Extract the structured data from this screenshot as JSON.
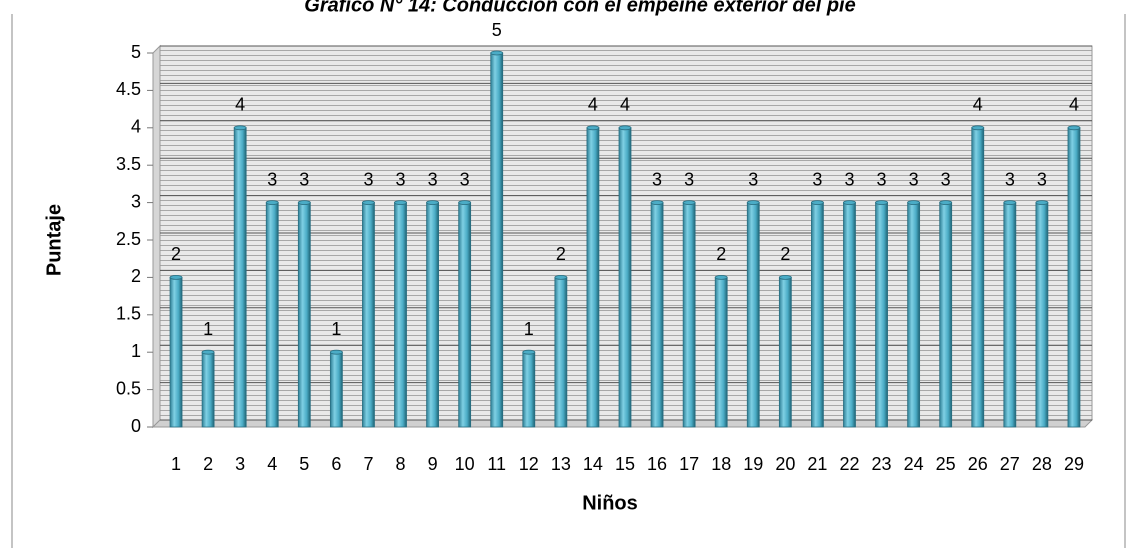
{
  "chart_data": {
    "type": "bar",
    "title": "Gráfico N° 14: Conducción con el empeine exterior del pie",
    "x_label": "Niños",
    "y_label": "Puntaje",
    "categories": [
      "1",
      "2",
      "3",
      "4",
      "5",
      "6",
      "7",
      "8",
      "9",
      "10",
      "11",
      "12",
      "13",
      "14",
      "15",
      "16",
      "17",
      "18",
      "19",
      "20",
      "21",
      "22",
      "23",
      "24",
      "25",
      "26",
      "27",
      "28",
      "29"
    ],
    "values": [
      2,
      1,
      4,
      3,
      3,
      1,
      3,
      3,
      3,
      3,
      5,
      1,
      2,
      4,
      4,
      3,
      3,
      2,
      3,
      2,
      3,
      3,
      3,
      3,
      3,
      4,
      3,
      3,
      4
    ],
    "color": "#4bacc6",
    "ylim": [
      0,
      5
    ],
    "yticks": [
      0,
      0.5,
      1,
      1.5,
      2,
      2.5,
      3,
      3.5,
      4,
      4.5,
      5
    ],
    "grid": true
  }
}
